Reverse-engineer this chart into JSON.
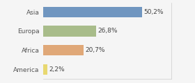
{
  "categories": [
    "Asia",
    "Europa",
    "Africa",
    "America"
  ],
  "values": [
    50.2,
    26.8,
    20.7,
    2.2
  ],
  "labels": [
    "50,2%",
    "26,8%",
    "20,7%",
    "2,2%"
  ],
  "bar_colors": [
    "#7096c0",
    "#a8bc8a",
    "#e0a878",
    "#e8d870"
  ],
  "background_color": "#f5f5f5",
  "xlim": [
    0,
    65
  ],
  "label_fontsize": 6.5,
  "tick_fontsize": 6.5,
  "bar_height": 0.55
}
